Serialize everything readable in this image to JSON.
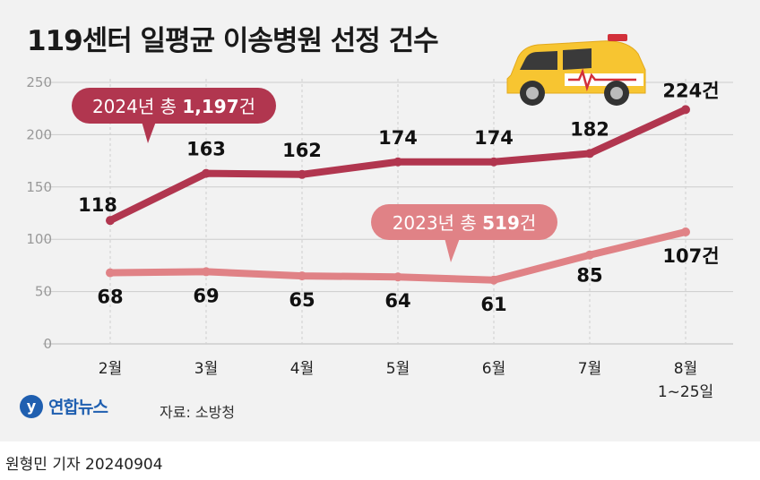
{
  "title": "119센터 일평균 이송병원 선정 건수",
  "source": "자료: 소방청",
  "logo_text": "연합뉴스",
  "credit": "원형민 기자  20240904",
  "colors": {
    "series_2024": "#b1364f",
    "series_2023": "#e08286",
    "panel": "#f2f2f2"
  },
  "icon": "ambulance-icon",
  "chart_data": {
    "type": "line",
    "categories": [
      "2월",
      "3월",
      "4월",
      "5월",
      "6월",
      "7월",
      "8월"
    ],
    "category_sublabels": [
      "",
      "",
      "",
      "",
      "",
      "",
      "1~25일"
    ],
    "ylim": [
      0,
      250
    ],
    "yticks": [
      "0",
      "50",
      "100",
      "150",
      "200",
      "250"
    ],
    "grid": true,
    "series": [
      {
        "name": "2024년",
        "label_prefix": "2024년 총 ",
        "total": "1,197",
        "label_suffix": "건",
        "values": [
          118,
          163,
          162,
          174,
          174,
          182,
          224
        ],
        "value_labels": [
          "118",
          "163",
          "162",
          "174",
          "174",
          "182",
          "224건"
        ]
      },
      {
        "name": "2023년",
        "label_prefix": "2023년 총 ",
        "total": "519",
        "label_suffix": "건",
        "values": [
          68,
          69,
          65,
          64,
          61,
          85,
          107
        ],
        "value_labels": [
          "68",
          "69",
          "65",
          "64",
          "61",
          "85",
          "107건"
        ]
      }
    ]
  }
}
